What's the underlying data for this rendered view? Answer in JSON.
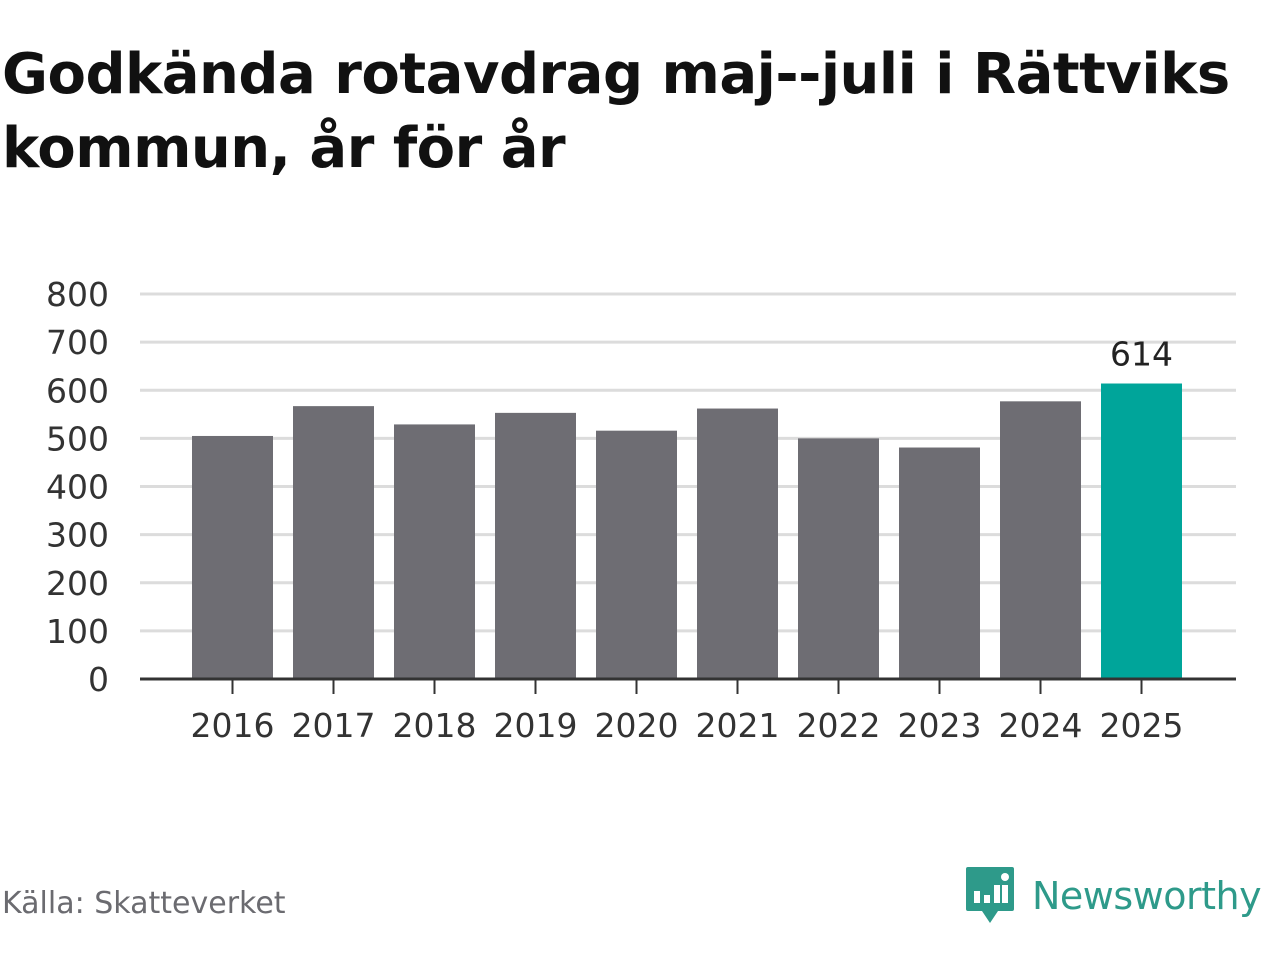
{
  "title": "Godkända rotavdrag maj--juli i Rättviks kommun, år för år",
  "source": "Källa: Skatteverket",
  "brand": {
    "name": "Newsworthy",
    "icon": "newsworthy-logo-icon",
    "color": "#2e9a8a"
  },
  "colors": {
    "bar": "#6e6d73",
    "highlight": "#00a59a",
    "grid": "#dcdcdc",
    "axis": "#333333"
  },
  "chart_data": {
    "type": "bar",
    "title": "Godkända rotavdrag maj--juli i Rättviks kommun, år för år",
    "xlabel": "",
    "ylabel": "",
    "categories": [
      "2016",
      "2017",
      "2018",
      "2019",
      "2020",
      "2021",
      "2022",
      "2023",
      "2024",
      "2025"
    ],
    "values": [
      505,
      567,
      529,
      553,
      516,
      562,
      500,
      481,
      577,
      614
    ],
    "highlight_index": 9,
    "data_labels": [
      {
        "index": 9,
        "text": "614"
      }
    ],
    "ylim": [
      0,
      800
    ],
    "yticks": [
      "0",
      "100",
      "200",
      "300",
      "400",
      "500",
      "600",
      "700",
      "800"
    ],
    "grid": true,
    "legend": "none"
  }
}
